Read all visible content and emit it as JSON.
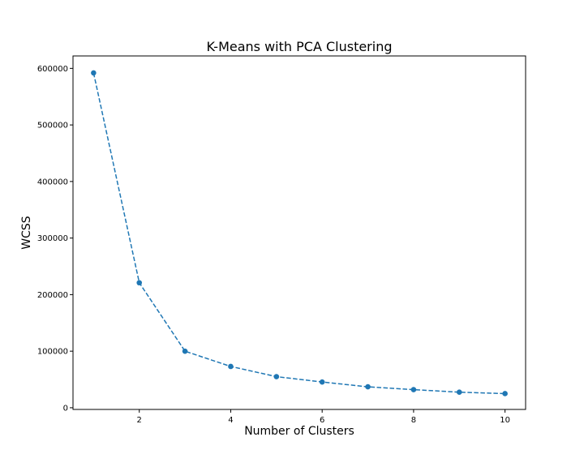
{
  "chart_data": {
    "type": "line",
    "title": "K-Means with PCA Clustering",
    "xlabel": "Number of Clusters",
    "ylabel": "WCSS",
    "x": [
      1,
      2,
      3,
      4,
      5,
      6,
      7,
      8,
      9,
      10
    ],
    "series": [
      {
        "values": [
          592000,
          221000,
          100000,
          73000,
          55000,
          45500,
          37000,
          32000,
          27500,
          25000
        ],
        "color": "#1f77b4",
        "line_style": "dashed",
        "marker": "circle"
      }
    ],
    "xticks": [
      2,
      4,
      6,
      8,
      10
    ],
    "yticks": [
      0,
      100000,
      200000,
      300000,
      400000,
      500000,
      600000
    ],
    "xlim": [
      0.55,
      10.45
    ],
    "ylim": [
      -3000,
      622000
    ],
    "grid": false,
    "legend": false
  }
}
